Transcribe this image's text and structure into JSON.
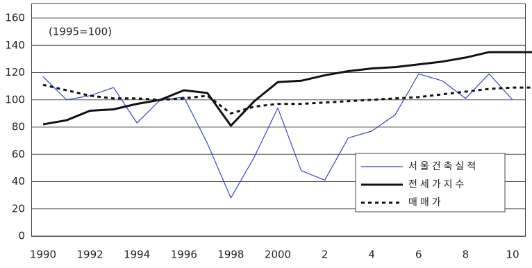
{
  "chart_data": {
    "type": "line",
    "annotation": "(1995=100)",
    "categories": [
      "1990",
      null,
      "1992",
      null,
      "1994",
      null,
      "1996",
      null,
      "1998",
      null,
      "2000",
      null,
      "2",
      null,
      "4",
      null,
      "6",
      null,
      "8",
      null,
      "10",
      null,
      "12"
    ],
    "series": [
      {
        "name": "서울건축실적",
        "color": "#3344cc",
        "width": 1.2,
        "dash": false,
        "values": [
          117,
          100,
          103,
          109,
          83,
          100,
          102,
          68,
          28,
          58,
          94,
          48,
          41,
          72,
          77,
          89,
          119,
          114,
          101,
          119,
          100,
          null,
          null
        ]
      },
      {
        "name": "전세가지수",
        "color": "#111111",
        "width": 3,
        "dash": false,
        "values": [
          82,
          85,
          92,
          93,
          97,
          100,
          107,
          105,
          81,
          99,
          113,
          114,
          118,
          121,
          123,
          124,
          126,
          128,
          131,
          135,
          135,
          135,
          135
        ]
      },
      {
        "name": "매매가",
        "color": "#111111",
        "width": 3,
        "dash": true,
        "values": [
          111,
          107,
          103,
          101,
          101,
          100,
          101,
          103,
          90,
          95,
          97,
          97,
          98,
          99,
          100,
          101,
          102,
          104,
          106,
          108,
          109,
          109,
          110
        ]
      }
    ],
    "ylim": [
      0,
      160
    ],
    "yticks": [
      0,
      20,
      40,
      60,
      80,
      100,
      120,
      140,
      160
    ],
    "grid": true
  }
}
